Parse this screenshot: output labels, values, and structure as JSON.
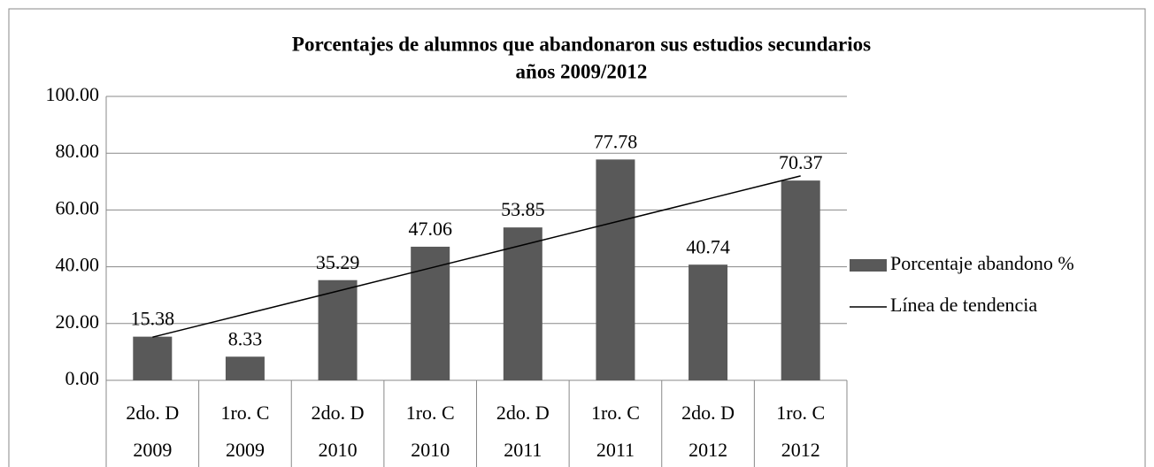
{
  "chart_data": {
    "type": "bar",
    "title": [
      "Porcentajes de alumnos que  abandonaron sus estudios secundarios",
      "años 2009/2012"
    ],
    "categories": [
      [
        "2do. D",
        "2009"
      ],
      [
        "1ro. C",
        "2009"
      ],
      [
        "2do. D",
        "2010"
      ],
      [
        "1ro. C",
        "2010"
      ],
      [
        "2do. D",
        "2011"
      ],
      [
        "1ro. C",
        "2011"
      ],
      [
        "2do. D",
        "2012"
      ],
      [
        "1ro. C",
        "2012"
      ]
    ],
    "series": [
      {
        "name": "Porcentaje abandono %",
        "color": "#595959",
        "values": [
          15.38,
          8.33,
          35.29,
          47.06,
          53.85,
          77.78,
          40.74,
          70.37
        ]
      },
      {
        "name": "Línea de tendencia",
        "type": "line",
        "color": "#000000",
        "values": [
          15.21,
          23.32,
          31.43,
          39.54,
          47.66,
          55.77,
          63.88,
          71.99
        ]
      }
    ],
    "ylim": [
      0,
      100
    ],
    "yticks": [
      {
        "value": 0,
        "label": "0.00"
      },
      {
        "value": 20,
        "label": "20.00"
      },
      {
        "value": 40,
        "label": "40.00"
      },
      {
        "value": 60,
        "label": "60.00"
      },
      {
        "value": 80,
        "label": "80.00"
      },
      {
        "value": 100,
        "label": "100.00"
      }
    ],
    "grid": true,
    "legend": "right"
  }
}
